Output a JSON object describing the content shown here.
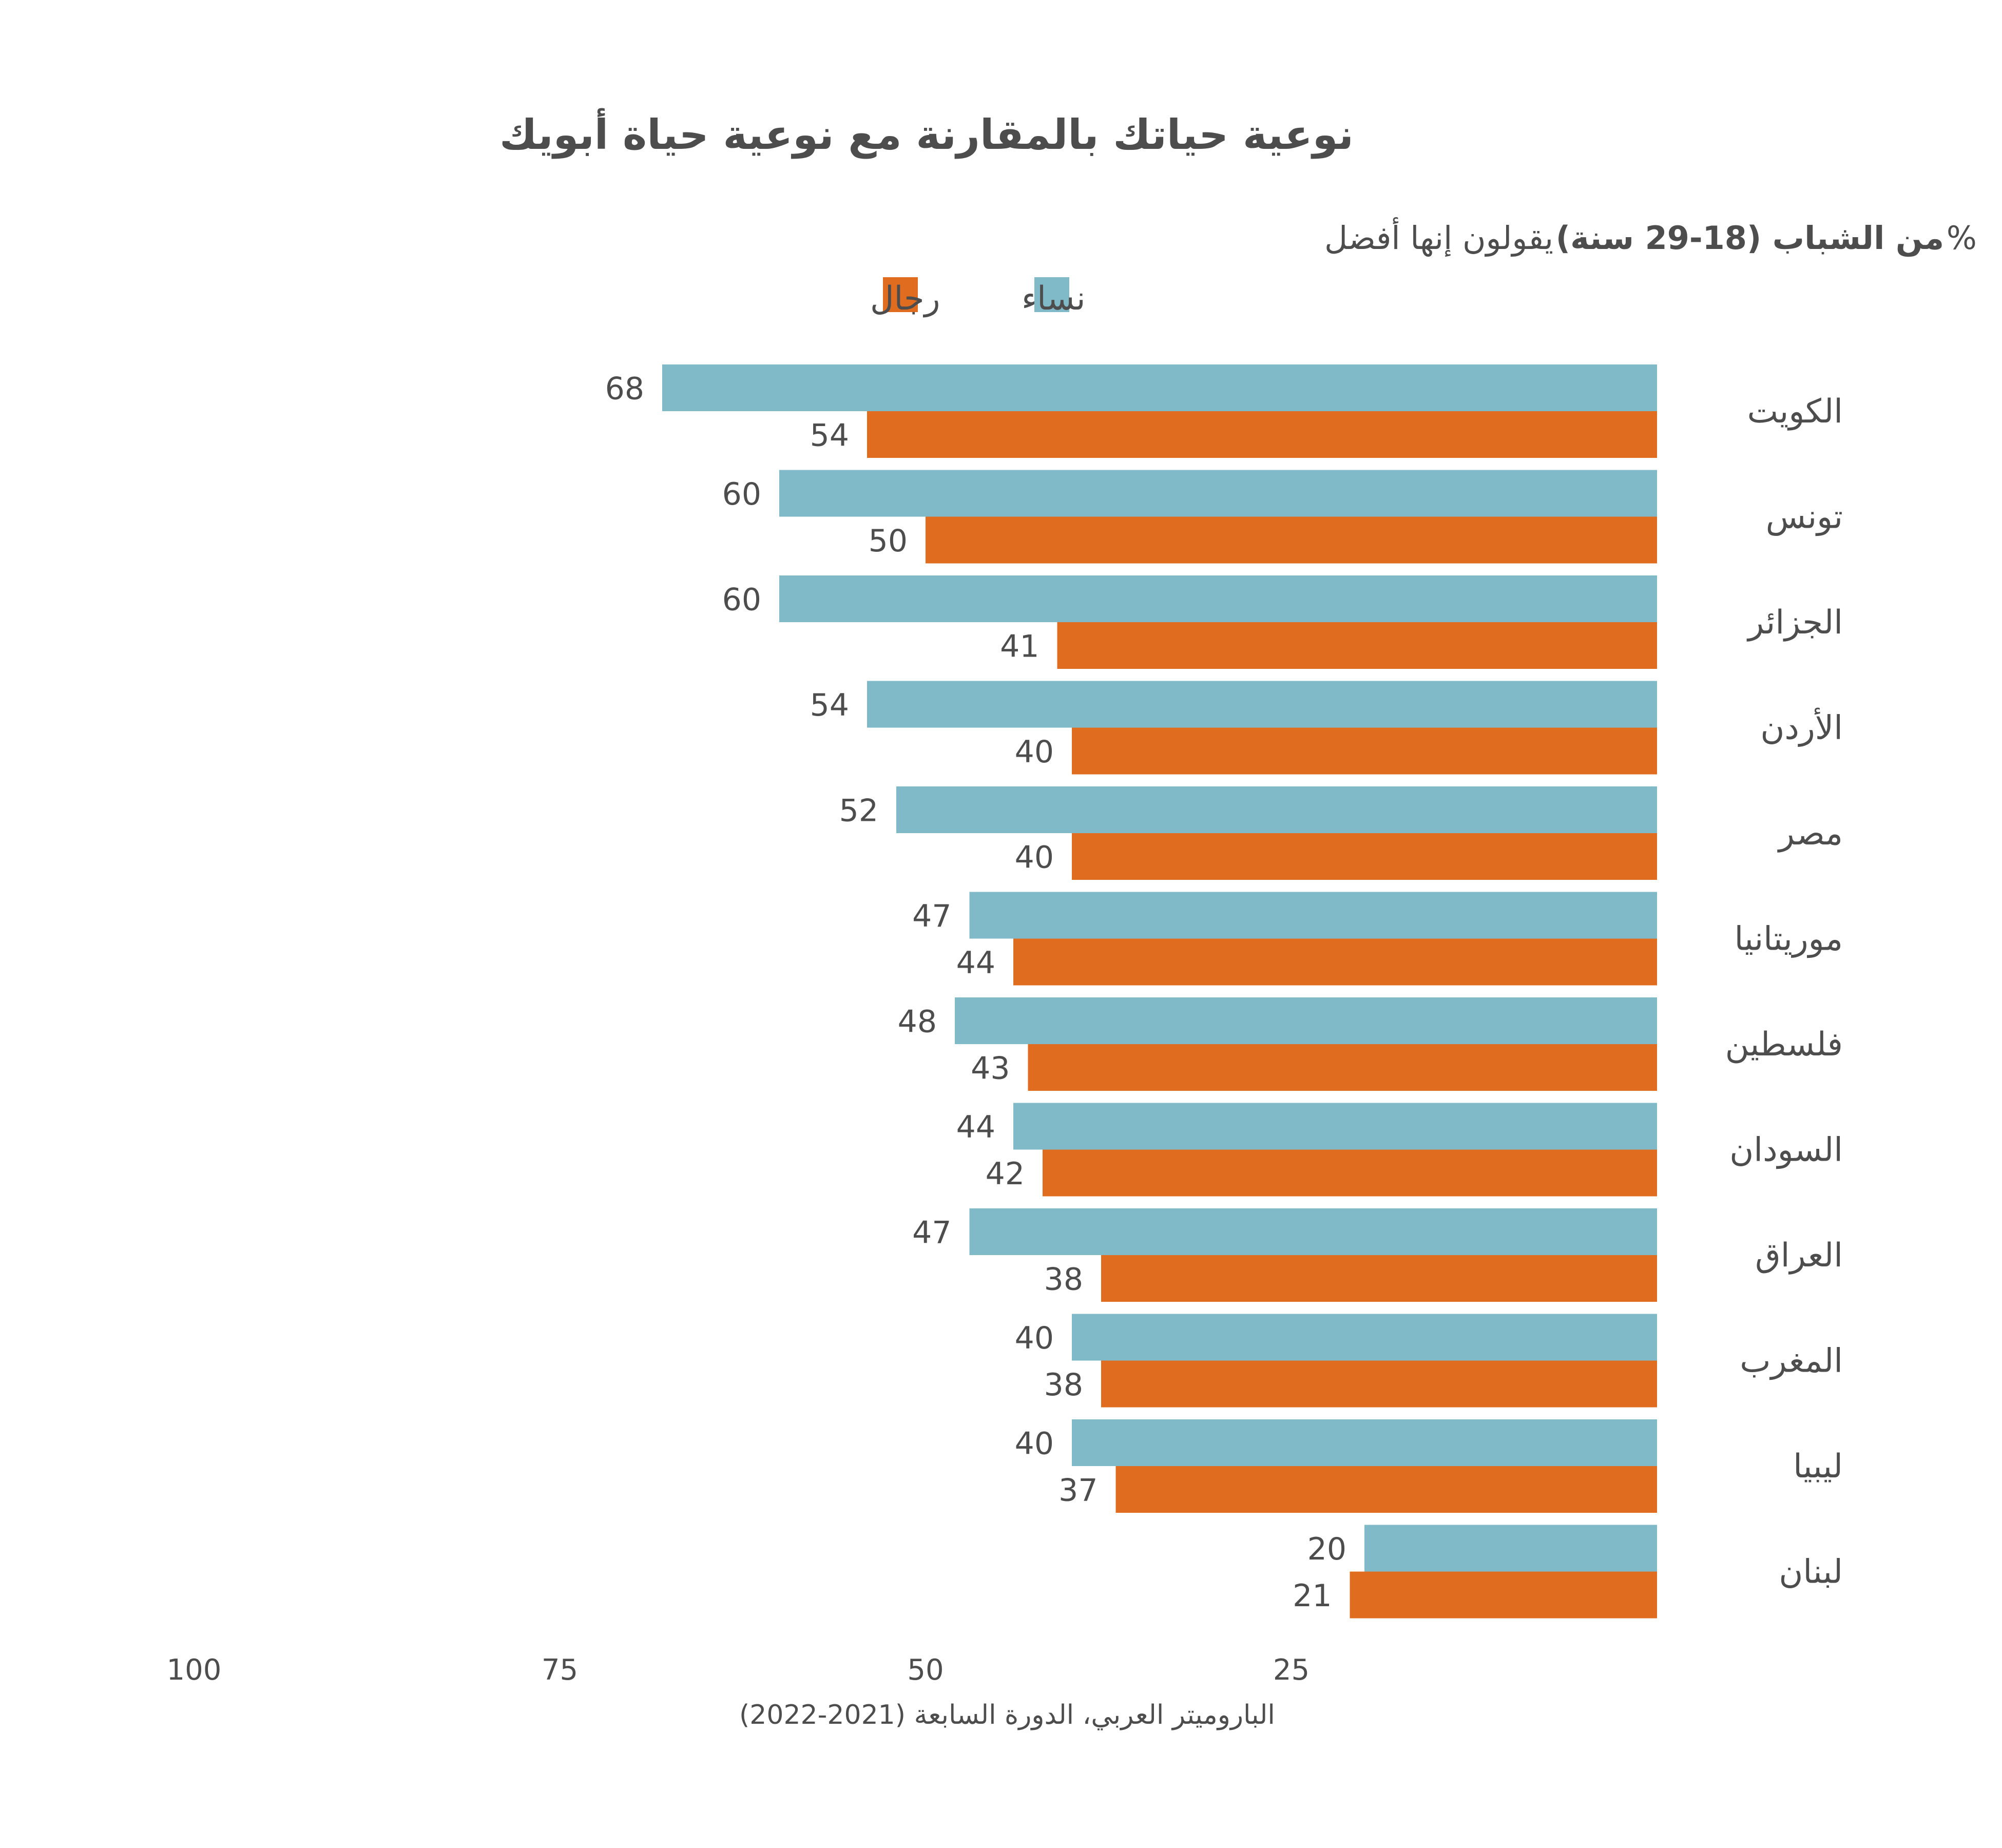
{
  "chart_data": {
    "type": "bar",
    "orientation": "horizontal",
    "title": "نوعية حياتك بالمقارنة مع نوعية حياة أبويك",
    "subtitle": {
      "prefix": "%",
      "bold": "من الشباب (18-29 سنة)",
      "suffix": "يقولون إنها أفضل"
    },
    "categories": [
      "الكويت",
      "تونس",
      "الجزائر",
      "الأردن",
      "مصر",
      "موريتانيا",
      "فلسطين",
      "السودان",
      "العراق",
      "المغرب",
      "ليبيا",
      "لبنان"
    ],
    "series": [
      {
        "name": "نساء",
        "color": "#80b9c7",
        "values": [
          68,
          60,
          60,
          54,
          52,
          47,
          48,
          44,
          47,
          40,
          40,
          20
        ]
      },
      {
        "name": "رجال",
        "color": "#e06c20",
        "values": [
          54,
          50,
          41,
          40,
          40,
          44,
          43,
          42,
          38,
          38,
          37,
          21
        ]
      }
    ],
    "xlim": [
      0,
      100
    ],
    "x_direction": "reversed",
    "x_ticks": [
      25,
      50,
      75,
      100
    ],
    "legend_position": "top",
    "grid": false,
    "source": "الباروميتر العربي، الدورة السابعة (2021-2022)"
  }
}
